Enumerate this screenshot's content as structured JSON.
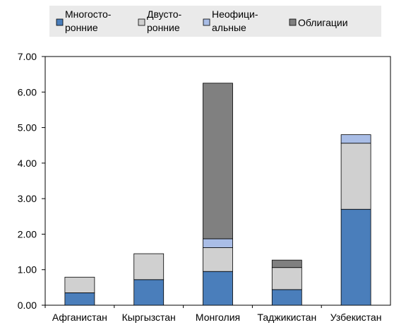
{
  "chart_data": {
    "type": "bar",
    "stacked": true,
    "categories": [
      "Афганистан",
      "Кыргызстан",
      "Монголия",
      "Таджикистан",
      "Узбекистан"
    ],
    "series": [
      {
        "name": "Многосто-ронние",
        "name_lines": [
          "Многосто-",
          "ронние"
        ],
        "color": "#4a7ebb",
        "values": [
          0.35,
          0.72,
          0.95,
          0.44,
          2.7
        ]
      },
      {
        "name": "Двусто-ронние",
        "name_lines": [
          "Двусто-",
          "ронние"
        ],
        "color": "#d0d0d0",
        "values": [
          0.44,
          0.73,
          0.67,
          0.62,
          1.86
        ]
      },
      {
        "name": "Неофици-альные",
        "name_lines": [
          "Неофици-",
          "альные"
        ],
        "color": "#a9bde6",
        "values": [
          0.0,
          0.0,
          0.25,
          0.0,
          0.24
        ]
      },
      {
        "name": "Облигации",
        "name_lines": [
          "Облигации"
        ],
        "color": "#808080",
        "values": [
          0.0,
          0.0,
          4.38,
          0.21,
          0.0
        ]
      }
    ],
    "ylim": [
      0,
      7
    ],
    "yticks": [
      "0.00",
      "1.00",
      "2.00",
      "3.00",
      "4.00",
      "5.00",
      "6.00",
      "7.00"
    ],
    "grid": false,
    "legend_position": "top"
  }
}
